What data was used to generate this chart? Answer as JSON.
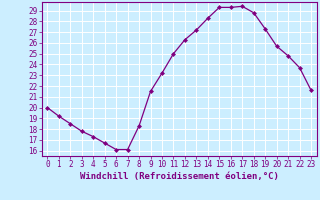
{
  "x": [
    0,
    1,
    2,
    3,
    4,
    5,
    6,
    7,
    8,
    9,
    10,
    11,
    12,
    13,
    14,
    15,
    16,
    17,
    18,
    19,
    20,
    21,
    22,
    23
  ],
  "y": [
    20.0,
    19.2,
    18.5,
    17.8,
    17.3,
    16.7,
    16.1,
    16.1,
    18.3,
    21.5,
    23.2,
    25.0,
    26.3,
    27.2,
    28.3,
    29.3,
    29.3,
    29.4,
    28.8,
    27.3,
    25.7,
    24.8,
    23.7,
    21.6
  ],
  "line_color": "#800080",
  "marker": "D",
  "markersize": 2.0,
  "bg_color": "#cceeff",
  "grid_color": "#ffffff",
  "xlabel": "Windchill (Refroidissement éolien,°C)",
  "xlim": [
    -0.5,
    23.5
  ],
  "ylim": [
    15.5,
    29.8
  ],
  "yticks": [
    16,
    17,
    18,
    19,
    20,
    21,
    22,
    23,
    24,
    25,
    26,
    27,
    28,
    29
  ],
  "xticks": [
    0,
    1,
    2,
    3,
    4,
    5,
    6,
    7,
    8,
    9,
    10,
    11,
    12,
    13,
    14,
    15,
    16,
    17,
    18,
    19,
    20,
    21,
    22,
    23
  ],
  "tick_fontsize": 5.5,
  "xlabel_fontsize": 6.5,
  "label_color": "#800080",
  "spine_color": "#800080",
  "linewidth": 0.9,
  "grid_linewidth": 0.7
}
